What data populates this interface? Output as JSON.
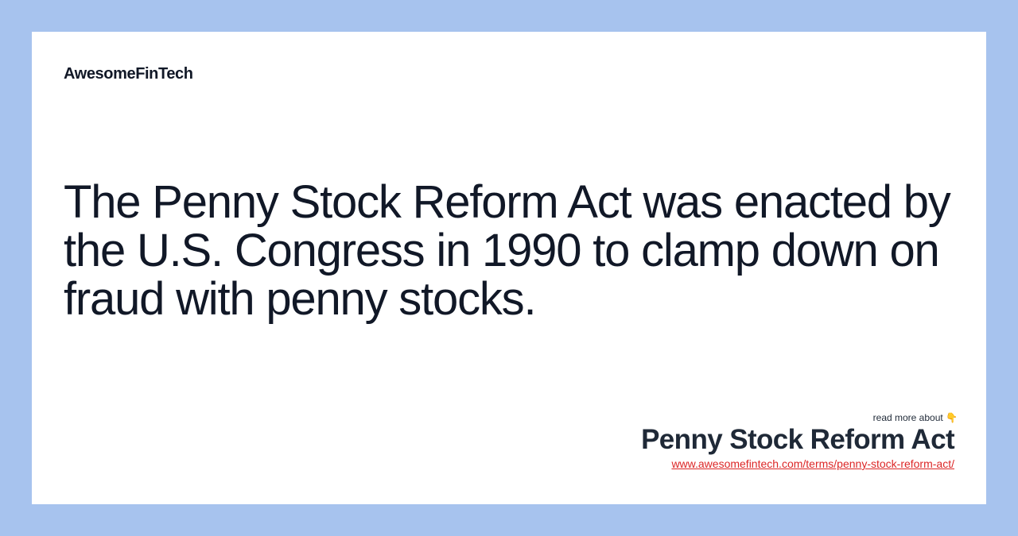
{
  "brand": {
    "name": "AwesomeFinTech"
  },
  "main": {
    "quote": "The Penny Stock Reform Act was enacted by the U.S. Congress in 1990 to clamp down on fraud with penny stocks."
  },
  "footer": {
    "read_more": "read more about 👇",
    "term_title": "Penny Stock Reform Act",
    "term_url": "www.awesomefintech.com/terms/penny-stock-reform-act/"
  },
  "colors": {
    "background": "#a7c3ee",
    "card": "#ffffff",
    "text": "#111827",
    "link": "#dc2626"
  }
}
